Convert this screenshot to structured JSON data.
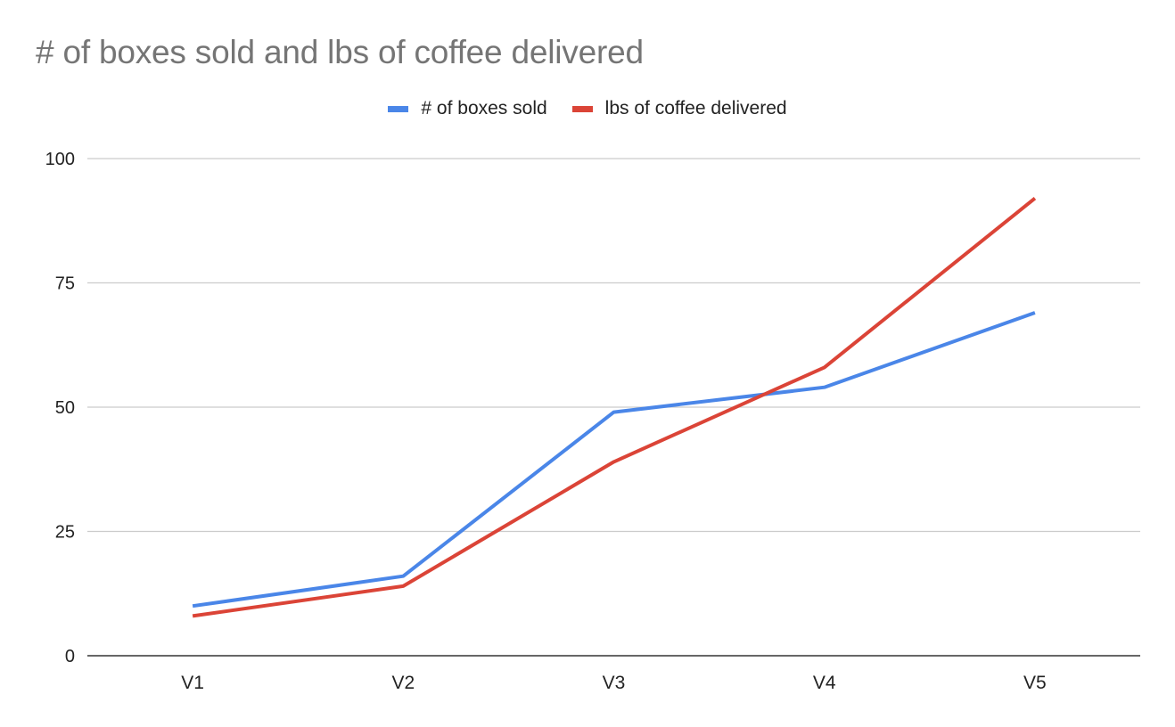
{
  "chart_data": {
    "type": "line",
    "title": "# of boxes sold and lbs of coffee delivered",
    "xlabel": "",
    "ylabel": "",
    "categories": [
      "V1",
      "V2",
      "V3",
      "V4",
      "V5"
    ],
    "series": [
      {
        "name": "# of boxes sold",
        "color": "#4A86E8",
        "values": [
          10,
          16,
          49,
          54,
          69
        ]
      },
      {
        "name": "lbs of coffee delivered",
        "color": "#DB4437",
        "values": [
          8,
          14,
          39,
          58,
          92
        ]
      }
    ],
    "ylim": [
      0,
      100
    ],
    "yticks": [
      0,
      25,
      50,
      75,
      100
    ],
    "grid": true,
    "legend_position": "top"
  },
  "colors": {
    "title": "#757575",
    "grid": "#cccccc",
    "axis": "#333333",
    "text": "#222222"
  }
}
